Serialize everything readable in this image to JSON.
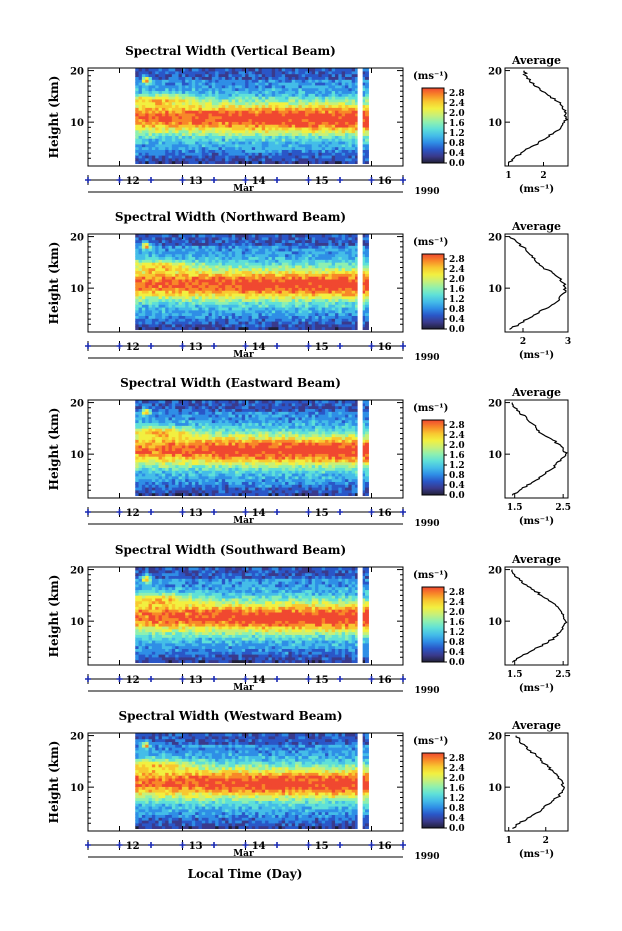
{
  "figure": {
    "xlabel": "Local Time (Day)"
  },
  "colorbar": {
    "unit": "(ms⁻¹)",
    "ticks": [
      "0.0",
      "0.4",
      "0.8",
      "1.2",
      "1.6",
      "2.0",
      "2.4",
      "2.8"
    ],
    "range": [
      0,
      3.0
    ],
    "colors": [
      "#202038",
      "#3a3a8c",
      "#2a57c8",
      "#2f8ee6",
      "#44bde8",
      "#5fe0d8",
      "#8ef0b0",
      "#c8f078",
      "#f2f040",
      "#f8c830",
      "#f88828",
      "#f04830"
    ]
  },
  "colors": {
    "tick_marker": "#1a2ab0",
    "axis": "#000000",
    "gap": "#ffffff"
  },
  "chart_data": [
    {
      "type": "heatmap",
      "title": "Spectral Width (Vertical Beam)",
      "ylabel": "Height (km)",
      "yticks": [
        "10",
        "20"
      ],
      "xticks": [
        "12",
        "13",
        "14",
        "15",
        "16"
      ],
      "month": "Mar",
      "year": "1990",
      "xlim": [
        11.5,
        16.5
      ],
      "ylim": [
        1.5,
        20.5
      ],
      "data_start_day": 12.25,
      "data_gap_day": 15.78,
      "data_end_day": 15.95,
      "colorbar_ticks": [
        "0.0",
        "0.4",
        "0.8",
        "1.2",
        "1.6",
        "2.0",
        "2.4",
        "2.8"
      ],
      "profile": {
        "title": "Average",
        "xlabel": "(ms⁻¹)",
        "xticks": [
          "1",
          "2"
        ],
        "xlim": [
          0.9,
          2.7
        ],
        "height_km": [
          2,
          3,
          4,
          5,
          6,
          7,
          8,
          9,
          10,
          11,
          12,
          13,
          14,
          15,
          16,
          17,
          18,
          19,
          20
        ],
        "values": [
          1.0,
          1.15,
          1.35,
          1.6,
          1.85,
          2.1,
          2.3,
          2.5,
          2.6,
          2.65,
          2.6,
          2.55,
          2.4,
          2.2,
          1.95,
          1.75,
          1.6,
          1.5,
          1.45
        ]
      }
    },
    {
      "type": "heatmap",
      "title": "Spectral Width (Northward Beam)",
      "ylabel": "Height (km)",
      "yticks": [
        "10",
        "20"
      ],
      "xticks": [
        "12",
        "13",
        "14",
        "15",
        "16"
      ],
      "month": "Mar",
      "year": "1990",
      "xlim": [
        11.5,
        16.5
      ],
      "ylim": [
        1.5,
        20.5
      ],
      "data_start_day": 12.25,
      "data_gap_day": 15.78,
      "data_end_day": 15.95,
      "colorbar_ticks": [
        "0.0",
        "0.4",
        "0.8",
        "1.2",
        "1.6",
        "2.0",
        "2.4",
        "2.8"
      ],
      "profile": {
        "title": "Average",
        "xlabel": "(ms⁻¹)",
        "xticks": [
          "2",
          "3"
        ],
        "xlim": [
          1.6,
          3.0
        ],
        "height_km": [
          2,
          3,
          4,
          5,
          6,
          7,
          8,
          9,
          10,
          11,
          12,
          13,
          14,
          15,
          16,
          17,
          18,
          19,
          20
        ],
        "values": [
          1.7,
          1.9,
          2.1,
          2.3,
          2.5,
          2.7,
          2.8,
          2.9,
          2.95,
          2.9,
          2.8,
          2.65,
          2.45,
          2.3,
          2.2,
          2.1,
          2.0,
          1.85,
          1.7
        ]
      }
    },
    {
      "type": "heatmap",
      "title": "Spectral Width (Eastward Beam)",
      "ylabel": "Height (km)",
      "yticks": [
        "10",
        "20"
      ],
      "xticks": [
        "12",
        "13",
        "14",
        "15",
        "16"
      ],
      "month": "Mar",
      "year": "1990",
      "xlim": [
        11.5,
        16.5
      ],
      "ylim": [
        1.5,
        20.5
      ],
      "data_start_day": 12.25,
      "data_gap_day": 15.78,
      "data_end_day": 15.95,
      "colorbar_ticks": [
        "0.0",
        "0.4",
        "0.8",
        "1.2",
        "1.6",
        "2.0",
        "2.4",
        "2.8"
      ],
      "profile": {
        "title": "Average",
        "xlabel": "(ms⁻¹)",
        "xticks": [
          "1.5",
          "2.5"
        ],
        "xlim": [
          1.3,
          2.6
        ],
        "height_km": [
          2,
          3,
          4,
          5,
          6,
          7,
          8,
          9,
          10,
          11,
          12,
          13,
          14,
          15,
          16,
          17,
          18,
          19,
          20
        ],
        "values": [
          1.45,
          1.6,
          1.75,
          1.95,
          2.1,
          2.25,
          2.35,
          2.45,
          2.55,
          2.5,
          2.4,
          2.25,
          2.05,
          1.95,
          1.85,
          1.75,
          1.6,
          1.5,
          1.45
        ]
      }
    },
    {
      "type": "heatmap",
      "title": "Spectral Width (Southward Beam)",
      "ylabel": "Height (km)",
      "yticks": [
        "10",
        "20"
      ],
      "xticks": [
        "12",
        "13",
        "14",
        "15",
        "16"
      ],
      "month": "Mar",
      "year": "1990",
      "xlim": [
        11.5,
        16.5
      ],
      "ylim": [
        1.5,
        20.5
      ],
      "data_start_day": 12.25,
      "data_gap_day": 15.78,
      "data_end_day": 15.95,
      "colorbar_ticks": [
        "0.0",
        "0.4",
        "0.8",
        "1.2",
        "1.6",
        "2.0",
        "2.4",
        "2.8"
      ],
      "profile": {
        "title": "Average",
        "xlabel": "(ms⁻¹)",
        "xticks": [
          "1.5",
          "2.5"
        ],
        "xlim": [
          1.3,
          2.6
        ],
        "height_km": [
          2,
          3,
          4,
          5,
          6,
          7,
          8,
          9,
          10,
          11,
          12,
          13,
          14,
          15,
          16,
          17,
          18,
          19,
          20
        ],
        "values": [
          1.45,
          1.6,
          1.8,
          2.0,
          2.2,
          2.35,
          2.45,
          2.5,
          2.55,
          2.5,
          2.45,
          2.35,
          2.2,
          2.05,
          1.9,
          1.75,
          1.6,
          1.5,
          1.45
        ]
      }
    },
    {
      "type": "heatmap",
      "title": "Spectral Width (Westward Beam)",
      "ylabel": "Height (km)",
      "yticks": [
        "10",
        "20"
      ],
      "xticks": [
        "12",
        "13",
        "14",
        "15",
        "16"
      ],
      "month": "Mar",
      "year": "1990",
      "xlim": [
        11.5,
        16.5
      ],
      "ylim": [
        1.5,
        20.5
      ],
      "data_start_day": 12.25,
      "data_gap_day": 15.78,
      "data_end_day": 15.95,
      "colorbar_ticks": [
        "0.0",
        "0.4",
        "0.8",
        "1.2",
        "1.6",
        "2.0",
        "2.4",
        "2.8"
      ],
      "profile": {
        "title": "Average",
        "xlabel": "(ms⁻¹)",
        "xticks": [
          "1",
          "2"
        ],
        "xlim": [
          0.9,
          2.6
        ],
        "height_km": [
          2,
          3,
          4,
          5,
          6,
          7,
          8,
          9,
          10,
          11,
          12,
          13,
          14,
          15,
          16,
          17,
          18,
          19,
          20
        ],
        "values": [
          1.1,
          1.3,
          1.5,
          1.75,
          1.95,
          2.15,
          2.3,
          2.45,
          2.5,
          2.45,
          2.35,
          2.2,
          2.05,
          1.9,
          1.75,
          1.6,
          1.45,
          1.3,
          1.2
        ]
      }
    }
  ]
}
